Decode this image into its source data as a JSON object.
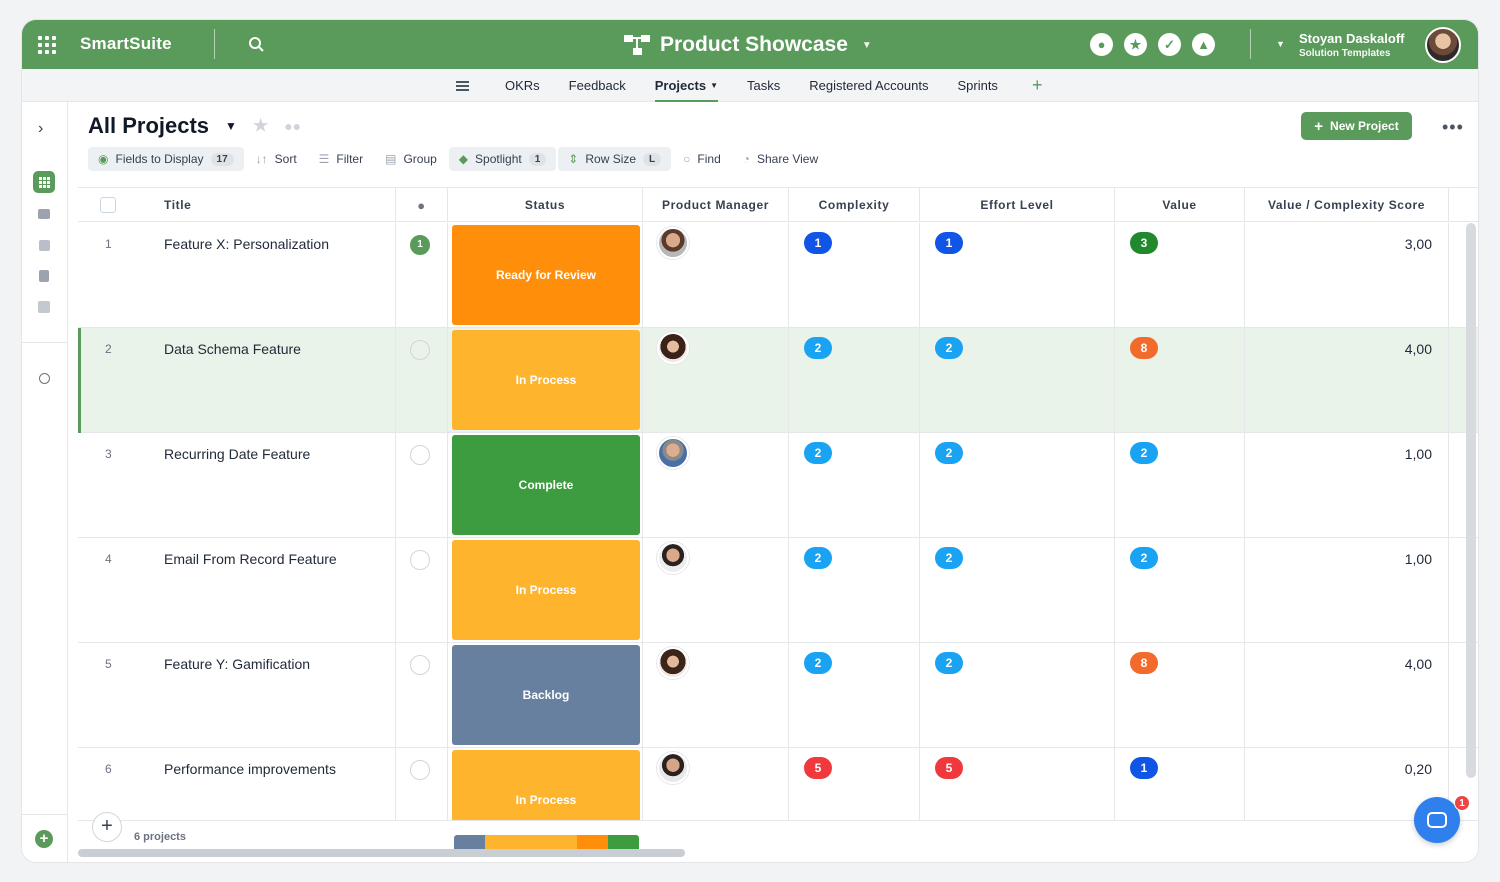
{
  "header": {
    "brand": "SmartSuite",
    "app_title": "Product Showcase",
    "user_name": "Stoyan Daskaloff",
    "user_subtitle": "Solution Templates",
    "accent": "#5a9a5b"
  },
  "tabs": [
    {
      "label": "OKRs"
    },
    {
      "label": "Feedback"
    },
    {
      "label": "Projects",
      "active": true
    },
    {
      "label": "Tasks"
    },
    {
      "label": "Registered Accounts"
    },
    {
      "label": "Sprints"
    }
  ],
  "page": {
    "title": "All Projects",
    "new_button": "New Project"
  },
  "toolbar": {
    "fields": "Fields to Display",
    "fields_count": "17",
    "sort": "Sort",
    "filter": "Filter",
    "group": "Group",
    "spotlight": "Spotlight",
    "spotlight_count": "1",
    "row_size": "Row Size",
    "row_size_value": "L",
    "find": "Find",
    "share": "Share View"
  },
  "columns": [
    "Title",
    "Status",
    "Product Manager",
    "Complexity",
    "Effort Level",
    "Value",
    "Value / Complexity Score"
  ],
  "status_colors": {
    "Ready for Review": "#ff8f0a",
    "In Process": "#ffb42e",
    "Complete": "#3d9b40",
    "Backlog": "#67809f"
  },
  "rows": [
    {
      "num": "1",
      "title": "Feature X: Personalization",
      "comments": "1",
      "status": "Ready for Review",
      "complexity": "1",
      "effort": "1",
      "value": "3",
      "score": "3,00"
    },
    {
      "num": "2",
      "title": "Data Schema Feature",
      "comments": "",
      "status": "In Process",
      "complexity": "2",
      "effort": "2",
      "value": "8",
      "score": "4,00"
    },
    {
      "num": "3",
      "title": "Recurring Date Feature",
      "comments": "",
      "status": "Complete",
      "complexity": "2",
      "effort": "2",
      "value": "2",
      "score": "1,00"
    },
    {
      "num": "4",
      "title": "Email From Record Feature",
      "comments": "",
      "status": "In Process",
      "complexity": "2",
      "effort": "2",
      "value": "2",
      "score": "1,00"
    },
    {
      "num": "5",
      "title": "Feature Y: Gamification",
      "comments": "",
      "status": "Backlog",
      "complexity": "2",
      "effort": "2",
      "value": "8",
      "score": "4,00"
    },
    {
      "num": "6",
      "title": "Performance improvements",
      "comments": "",
      "status": "In Process",
      "complexity": "5",
      "effort": "5",
      "value": "1",
      "score": "0,20"
    }
  ],
  "footer": {
    "count": "6 projects",
    "chat_badge": "1"
  }
}
